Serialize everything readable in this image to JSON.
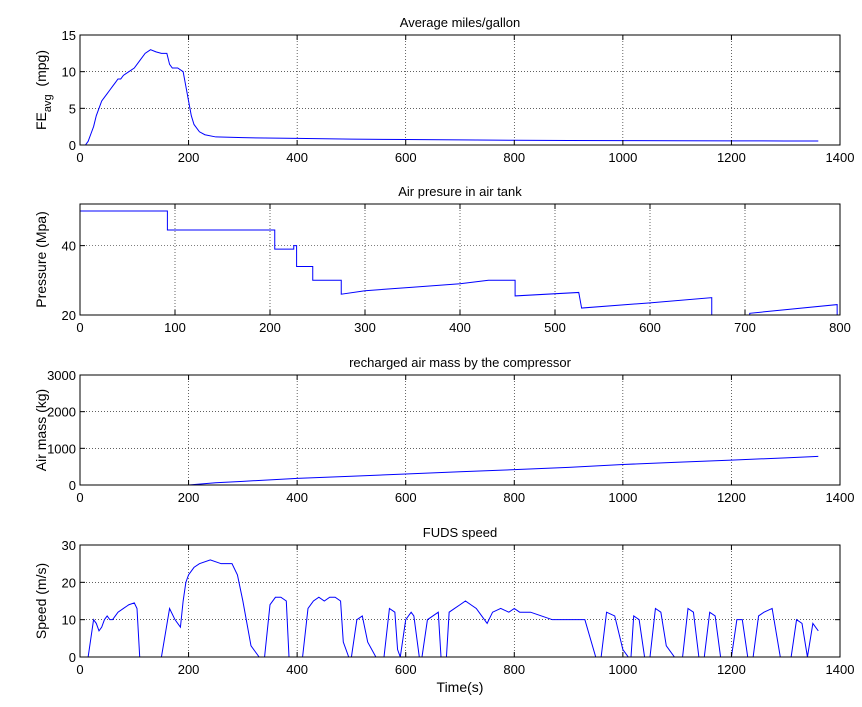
{
  "chart_data": [
    {
      "type": "line",
      "title": "Average miles/gallon",
      "ylabel": "FE",
      "ylabel_sub": "avg",
      "ylabel_unit": "(mpg)",
      "xlabel": "",
      "xlim": [
        0,
        1400
      ],
      "ylim": [
        0,
        15
      ],
      "xticks": [
        0,
        200,
        400,
        600,
        800,
        1000,
        1200,
        1400
      ],
      "yticks": [
        0,
        5,
        10,
        15
      ],
      "grid": true,
      "series": [
        {
          "color": "#0000ff",
          "x": [
            0,
            10,
            15,
            20,
            25,
            30,
            35,
            40,
            45,
            50,
            55,
            60,
            65,
            70,
            75,
            80,
            90,
            100,
            110,
            120,
            130,
            140,
            150,
            160,
            165,
            170,
            180,
            190,
            195,
            200,
            205,
            210,
            220,
            230,
            250,
            300,
            400,
            500,
            600,
            700,
            800,
            900,
            1000,
            1100,
            1200,
            1300,
            1360
          ],
          "y": [
            0,
            0,
            0.5,
            1.5,
            2.5,
            4,
            5,
            6,
            6.5,
            7,
            7.5,
            8,
            8.5,
            9,
            9,
            9.5,
            10,
            10.5,
            11.5,
            12.5,
            13,
            12.7,
            12.5,
            12.5,
            11,
            10.5,
            10.5,
            10,
            8,
            6,
            4,
            2.8,
            1.8,
            1.4,
            1.1,
            1,
            0.9,
            0.8,
            0.75,
            0.7,
            0.65,
            0.62,
            0.6,
            0.58,
            0.56,
            0.55,
            0.55
          ]
        }
      ]
    },
    {
      "type": "line",
      "title": "Air presure in air tank",
      "ylabel": "Pressure (Mpa)",
      "xlabel": "",
      "xlim": [
        0,
        800
      ],
      "ylim": [
        20,
        52
      ],
      "xticks": [
        0,
        100,
        200,
        300,
        400,
        500,
        600,
        700,
        800
      ],
      "yticks": [
        20,
        40
      ],
      "grid": true,
      "series": [
        {
          "color": "#0000ff",
          "x": [
            0,
            92,
            92,
            205,
            205,
            225,
            225,
            228,
            228,
            245,
            245,
            275,
            275,
            300,
            350,
            400,
            430,
            458,
            458,
            525,
            525,
            528,
            528,
            600,
            665,
            665,
            705,
            705,
            797,
            797
          ],
          "y": [
            50,
            50,
            44.5,
            44.5,
            39,
            39,
            40,
            40,
            34,
            34,
            30,
            30,
            26,
            27,
            28,
            29,
            30,
            30,
            25.5,
            26.5,
            26.5,
            22,
            22,
            23.5,
            25,
            19.8,
            19.8,
            20.5,
            23,
            19.8
          ]
        }
      ]
    },
    {
      "type": "line",
      "title": "recharged air mass by the compressor",
      "ylabel": "Air mass (kg)",
      "xlabel": "",
      "xlim": [
        0,
        1400
      ],
      "ylim": [
        0,
        3000
      ],
      "xticks": [
        0,
        200,
        400,
        600,
        800,
        1000,
        1200,
        1400
      ],
      "yticks": [
        0,
        1000,
        2000,
        3000
      ],
      "grid": true,
      "series": [
        {
          "color": "#0000ff",
          "x": [
            0,
            200,
            250,
            300,
            350,
            400,
            500,
            600,
            700,
            800,
            900,
            1000,
            1100,
            1200,
            1300,
            1360
          ],
          "y": [
            0,
            0,
            60,
            100,
            140,
            180,
            240,
            300,
            360,
            420,
            480,
            560,
            620,
            680,
            740,
            780
          ]
        }
      ]
    },
    {
      "type": "line",
      "title": "FUDS speed",
      "ylabel": "Speed (m/s)",
      "xlabel": "Time(s)",
      "xlim": [
        0,
        1400
      ],
      "ylim": [
        0,
        30
      ],
      "xticks": [
        0,
        200,
        400,
        600,
        800,
        1000,
        1200,
        1400
      ],
      "yticks": [
        0,
        10,
        20,
        30
      ],
      "grid": true,
      "series": [
        {
          "color": "#0000ff",
          "x": [
            0,
            15,
            20,
            25,
            30,
            35,
            40,
            45,
            50,
            55,
            60,
            65,
            70,
            80,
            90,
            100,
            105,
            110,
            125,
            150,
            165,
            175,
            185,
            190,
            195,
            200,
            210,
            220,
            240,
            260,
            280,
            290,
            300,
            315,
            330,
            340,
            350,
            360,
            370,
            380,
            385,
            395,
            410,
            420,
            430,
            440,
            450,
            460,
            470,
            480,
            485,
            495,
            500,
            510,
            520,
            530,
            545,
            560,
            570,
            580,
            585,
            590,
            600,
            610,
            615,
            625,
            630,
            640,
            650,
            660,
            665,
            675,
            680,
            690,
            700,
            710,
            720,
            730,
            740,
            750,
            760,
            775,
            790,
            800,
            810,
            830,
            850,
            870,
            890,
            910,
            930,
            950,
            960,
            970,
            985,
            1000,
            1010,
            1015,
            1020,
            1030,
            1040,
            1050,
            1060,
            1070,
            1080,
            1095,
            1110,
            1120,
            1130,
            1140,
            1150,
            1160,
            1170,
            1180,
            1190,
            1200,
            1210,
            1220,
            1230,
            1240,
            1250,
            1260,
            1275,
            1290,
            1300,
            1310,
            1320,
            1330,
            1340,
            1350,
            1360
          ],
          "y": [
            0,
            0,
            5,
            10,
            9,
            7,
            8,
            10,
            11,
            10,
            10,
            11,
            12,
            13,
            14,
            14.5,
            13,
            0,
            0,
            0,
            13,
            10,
            8,
            15,
            20,
            22,
            24,
            25,
            26,
            25,
            25,
            22,
            15,
            3,
            0,
            0,
            14,
            16,
            16,
            15,
            0,
            0,
            0,
            13,
            15,
            16,
            15,
            16,
            16,
            15,
            4,
            0,
            0,
            10,
            11,
            4,
            0,
            0,
            13,
            12,
            2,
            0,
            10,
            12,
            11,
            0,
            0,
            10,
            11,
            12,
            0,
            0,
            12,
            13,
            14,
            15,
            14,
            13,
            11,
            9,
            12,
            13,
            12,
            13,
            12,
            12,
            11,
            10,
            10,
            10,
            10,
            0,
            0,
            12,
            11,
            2,
            0,
            0,
            11,
            10,
            0,
            0,
            13,
            12,
            3,
            0,
            0,
            13,
            12,
            0,
            0,
            12,
            11,
            0,
            0,
            0,
            10,
            10,
            0,
            0,
            11,
            12,
            13,
            0,
            0,
            0,
            10,
            9,
            0,
            9,
            7
          ]
        }
      ]
    }
  ]
}
